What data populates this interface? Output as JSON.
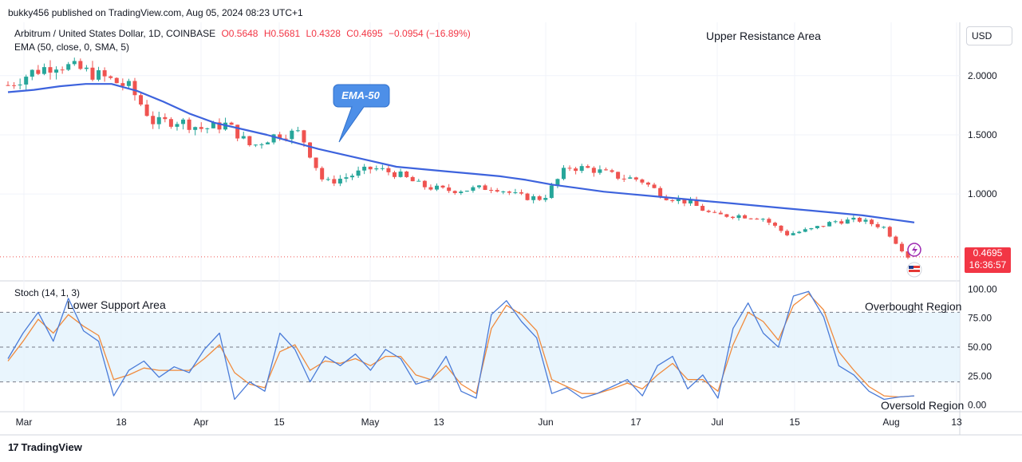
{
  "header": {
    "published_text": "bukky456 published on TradingView.com, Aug 05, 2024 08:23 UTC+1"
  },
  "legend": {
    "symbol": "Arbitrum / United States Dollar, 1D, COINBASE",
    "open": "O0.5648",
    "high": "H0.5681",
    "low": "L0.4328",
    "close": "C0.4695",
    "change": "−0.0954 (−16.89%)",
    "ema": "EMA (50, close, 0, SMA, 5)",
    "stoch": "Stoch (14, 1, 3)"
  },
  "currency": "USD",
  "price_tag": {
    "price": "0.4695",
    "countdown": "16:36:57"
  },
  "footer": {
    "brand": "TradingView"
  },
  "colors": {
    "up": "#26a69a",
    "down": "#ef5350",
    "ema": "#3d63dd",
    "stoch_k": "#4a7bd8",
    "stoch_d": "#f08a3c",
    "band": "#e3f2fd",
    "callout": "#4d8fe8"
  },
  "chart_data": [
    {
      "type": "candlestick",
      "title": "Arbitrum / United States Dollar, 1D, COINBASE",
      "x_tick_labels": [
        "Mar",
        "18",
        "Apr",
        "15",
        "May",
        "13",
        "Jun",
        "17",
        "Jul",
        "15",
        "Aug",
        "13"
      ],
      "y_tick_labels": [
        "2.0000",
        "1.5000",
        "1.0000"
      ],
      "ylim": [
        0.28,
        2.45
      ],
      "grid": true,
      "annotations": [
        {
          "text": "Upper Resistance Area"
        },
        {
          "text": "EMA-50"
        }
      ],
      "series": [
        {
          "name": "EMA (50, close, 0, SMA, 5)",
          "values": [
            1.86,
            1.88,
            1.91,
            1.93,
            1.93,
            1.87,
            1.78,
            1.68,
            1.6,
            1.55,
            1.5,
            1.44,
            1.38,
            1.33,
            1.28,
            1.23,
            1.21,
            1.19,
            1.17,
            1.15,
            1.12,
            1.08,
            1.05,
            1.02,
            1.0,
            0.98,
            0.96,
            0.94,
            0.92,
            0.9,
            0.88,
            0.86,
            0.84,
            0.82,
            0.79,
            0.76
          ]
        },
        {
          "name": "close",
          "values": [
            1.92,
            2.03,
            2.1,
            2.05,
            1.98,
            1.9,
            1.6,
            1.62,
            1.55,
            1.59,
            1.4,
            1.5,
            1.52,
            1.09,
            1.15,
            1.22,
            1.17,
            1.07,
            1.03,
            1.04,
            1.06,
            0.98,
            0.96,
            1.23,
            1.21,
            1.15,
            1.12,
            0.98,
            0.93,
            0.82,
            0.82,
            0.8,
            0.66,
            0.7,
            0.77,
            0.78,
            0.72,
            0.47
          ]
        }
      ]
    },
    {
      "type": "line",
      "title": "Stoch (14, 1, 3)",
      "y_tick_labels": [
        "100.00",
        "75.00",
        "50.00",
        "25.00",
        "0.00"
      ],
      "ylim": [
        -5,
        105
      ],
      "bands": {
        "overbought": 80,
        "middle": 50,
        "oversold": 20
      },
      "annotations": [
        {
          "text": "Lower Support Area"
        },
        {
          "text": "Overbought Region"
        },
        {
          "text": "Oversold Region"
        }
      ],
      "series": [
        {
          "name": "%K",
          "values": [
            40,
            62,
            80,
            55,
            92,
            64,
            55,
            8,
            30,
            38,
            24,
            33,
            28,
            48,
            62,
            5,
            20,
            12,
            62,
            48,
            20,
            42,
            34,
            44,
            30,
            48,
            40,
            18,
            22,
            42,
            12,
            6,
            78,
            90,
            72,
            58,
            10,
            15,
            6,
            10,
            16,
            22,
            8,
            34,
            42,
            14,
            26,
            6,
            66,
            88,
            62,
            50,
            94,
            98,
            76,
            34,
            26,
            12,
            5,
            7,
            8
          ]
        },
        {
          "name": "%D",
          "values": [
            38,
            55,
            74,
            62,
            78,
            68,
            60,
            22,
            26,
            32,
            30,
            30,
            30,
            40,
            52,
            28,
            18,
            15,
            46,
            52,
            30,
            38,
            36,
            40,
            34,
            42,
            42,
            26,
            22,
            34,
            18,
            10,
            66,
            86,
            78,
            64,
            22,
            16,
            10,
            10,
            14,
            19,
            14,
            26,
            36,
            22,
            22,
            12,
            52,
            80,
            72,
            56,
            86,
            96,
            82,
            46,
            30,
            16,
            8,
            7,
            8
          ]
        }
      ]
    }
  ]
}
